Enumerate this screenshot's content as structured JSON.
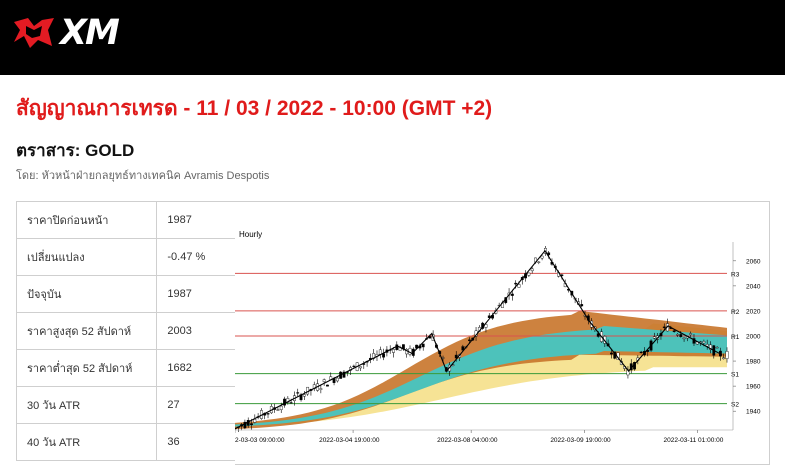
{
  "header": {
    "logo_text": "XM"
  },
  "page": {
    "title": "สัญญาณการเทรด - 11 / 03 / 2022 - 10:00 (GMT +2)",
    "instrument": "ตราสาร: GOLD",
    "author": "โดย: หัวหน้าฝ่ายกลยุทธ์ทางเทคนิค Avramis Despotis"
  },
  "stats": [
    {
      "label": "ราคาปิดก่อนหน้า",
      "value": "1987"
    },
    {
      "label": "เปลี่ยนแปลง",
      "value": "-0.47 %"
    },
    {
      "label": "ปัจจุบัน",
      "value": "1987"
    },
    {
      "label": "ราคาสูงสุด 52 สัปดาห์",
      "value": "2003"
    },
    {
      "label": "ราคาต่ำสุด 52 สัปดาห์",
      "value": "1682"
    },
    {
      "label": "30 วัน ATR",
      "value": "27"
    },
    {
      "label": "40 วัน ATR",
      "value": "36"
    }
  ],
  "colors": {
    "title": "#e01b1b",
    "resistance": "#d9534f",
    "support": "#3a9a3a",
    "band_orange": "#c8742a",
    "band_cyan": "#3fc9c9",
    "band_yellow": "#f5e08a"
  },
  "chart_data": {
    "type": "line",
    "title": "Hourly",
    "ylim": [
      1925,
      2075
    ],
    "y_ticks": [
      1940,
      1960,
      1980,
      2000,
      2020,
      2040,
      2060
    ],
    "x_ticks": [
      "2-03-03 09:00:00",
      "2022-03-04 19:00:00",
      "2022-03-08 04:00:00",
      "2022-03-09 19:00:00",
      "2022-03-11 01:00:00"
    ],
    "levels": [
      {
        "name": "R3",
        "value": 2050,
        "kind": "resistance"
      },
      {
        "name": "R2",
        "value": 2020,
        "kind": "resistance"
      },
      {
        "name": "R1",
        "value": 2000,
        "kind": "resistance"
      },
      {
        "name": "S1",
        "value": 1970,
        "kind": "support"
      },
      {
        "name": "S2",
        "value": 1946,
        "kind": "support"
      }
    ],
    "zigzag": [
      {
        "x": 0.0,
        "y": 1926
      },
      {
        "x": 0.33,
        "y": 1992
      },
      {
        "x": 0.36,
        "y": 1986
      },
      {
        "x": 0.4,
        "y": 2002
      },
      {
        "x": 0.43,
        "y": 1972
      },
      {
        "x": 0.63,
        "y": 2068
      },
      {
        "x": 0.72,
        "y": 2012
      },
      {
        "x": 0.8,
        "y": 1972
      },
      {
        "x": 0.88,
        "y": 2008
      },
      {
        "x": 0.99,
        "y": 1985
      }
    ],
    "series": [
      {
        "name": "",
        "values": []
      }
    ]
  }
}
